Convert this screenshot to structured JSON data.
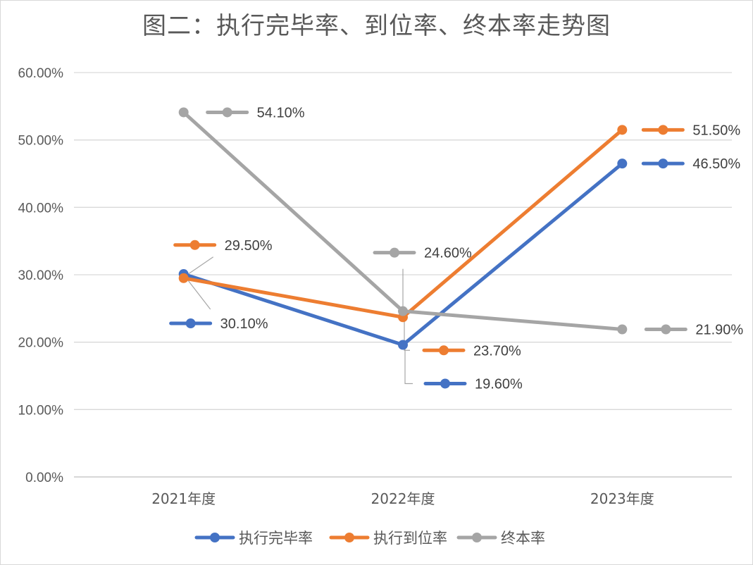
{
  "chart_data": {
    "type": "line",
    "title": "图二：执行完毕率、到位率、终本率走势图",
    "categories": [
      "2021年度",
      "2022年度",
      "2023年度"
    ],
    "y_tick_labels": [
      "0.00%",
      "10.00%",
      "20.00%",
      "30.00%",
      "40.00%",
      "50.00%",
      "60.00%"
    ],
    "ylim": [
      0,
      60
    ],
    "grid": true,
    "legend_position": "bottom",
    "series": [
      {
        "name": "执行完毕率",
        "color": "#4472C4",
        "values": [
          30.1,
          19.6,
          46.5
        ],
        "labels": [
          "30.10%",
          "19.60%",
          "46.50%"
        ]
      },
      {
        "name": "执行到位率",
        "color": "#ED7D31",
        "values": [
          29.5,
          23.7,
          51.5
        ],
        "labels": [
          "29.50%",
          "23.70%",
          "51.50%"
        ]
      },
      {
        "name": "终本率",
        "color": "#A5A5A5",
        "values": [
          54.1,
          24.6,
          21.9
        ],
        "labels": [
          "54.10%",
          "24.60%",
          "21.90%"
        ]
      }
    ]
  }
}
